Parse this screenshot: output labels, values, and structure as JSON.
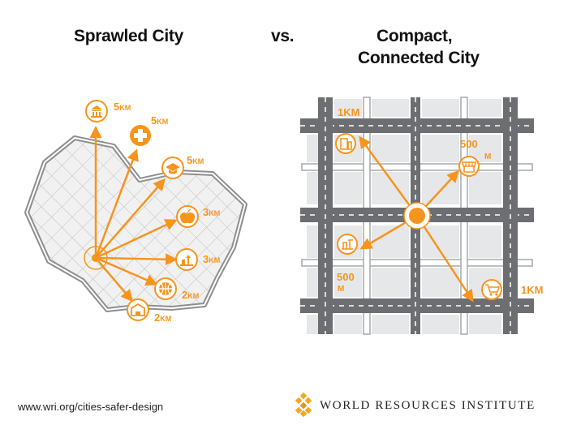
{
  "titles": {
    "left": "Sprawled City",
    "vs": "vs.",
    "right_line1": "Compact,",
    "right_line2": "Connected City"
  },
  "sprawl": {
    "destinations": [
      {
        "icon": "bank-icon",
        "value": "5",
        "unit": "KM"
      },
      {
        "icon": "hospital-cross-icon",
        "value": "5",
        "unit": "KM"
      },
      {
        "icon": "graduation-cap-icon",
        "value": "5",
        "unit": "KM"
      },
      {
        "icon": "apple-icon",
        "value": "3",
        "unit": "KM"
      },
      {
        "icon": "playground-icon",
        "value": "3",
        "unit": "KM"
      },
      {
        "icon": "basketball-icon",
        "value": "2",
        "unit": "KM"
      },
      {
        "icon": "building-icon",
        "value": "2",
        "unit": "KM"
      }
    ]
  },
  "compact": {
    "destinations": [
      {
        "icon": "building-icon",
        "label": "1KM"
      },
      {
        "icon": "market-stall-icon",
        "label": "500",
        "sub": "M"
      },
      {
        "icon": "playground-icon",
        "label": "500",
        "sub": "M"
      },
      {
        "icon": "shopping-cart-icon",
        "label": "1KM"
      }
    ]
  },
  "colors": {
    "accent": "#f7941d",
    "road": "#6d6e71",
    "block": "#e6e7e8"
  },
  "footer": {
    "url": "www.wri.org/cities-safer-design",
    "org": "WORLD RESOURCES INSTITUTE"
  }
}
